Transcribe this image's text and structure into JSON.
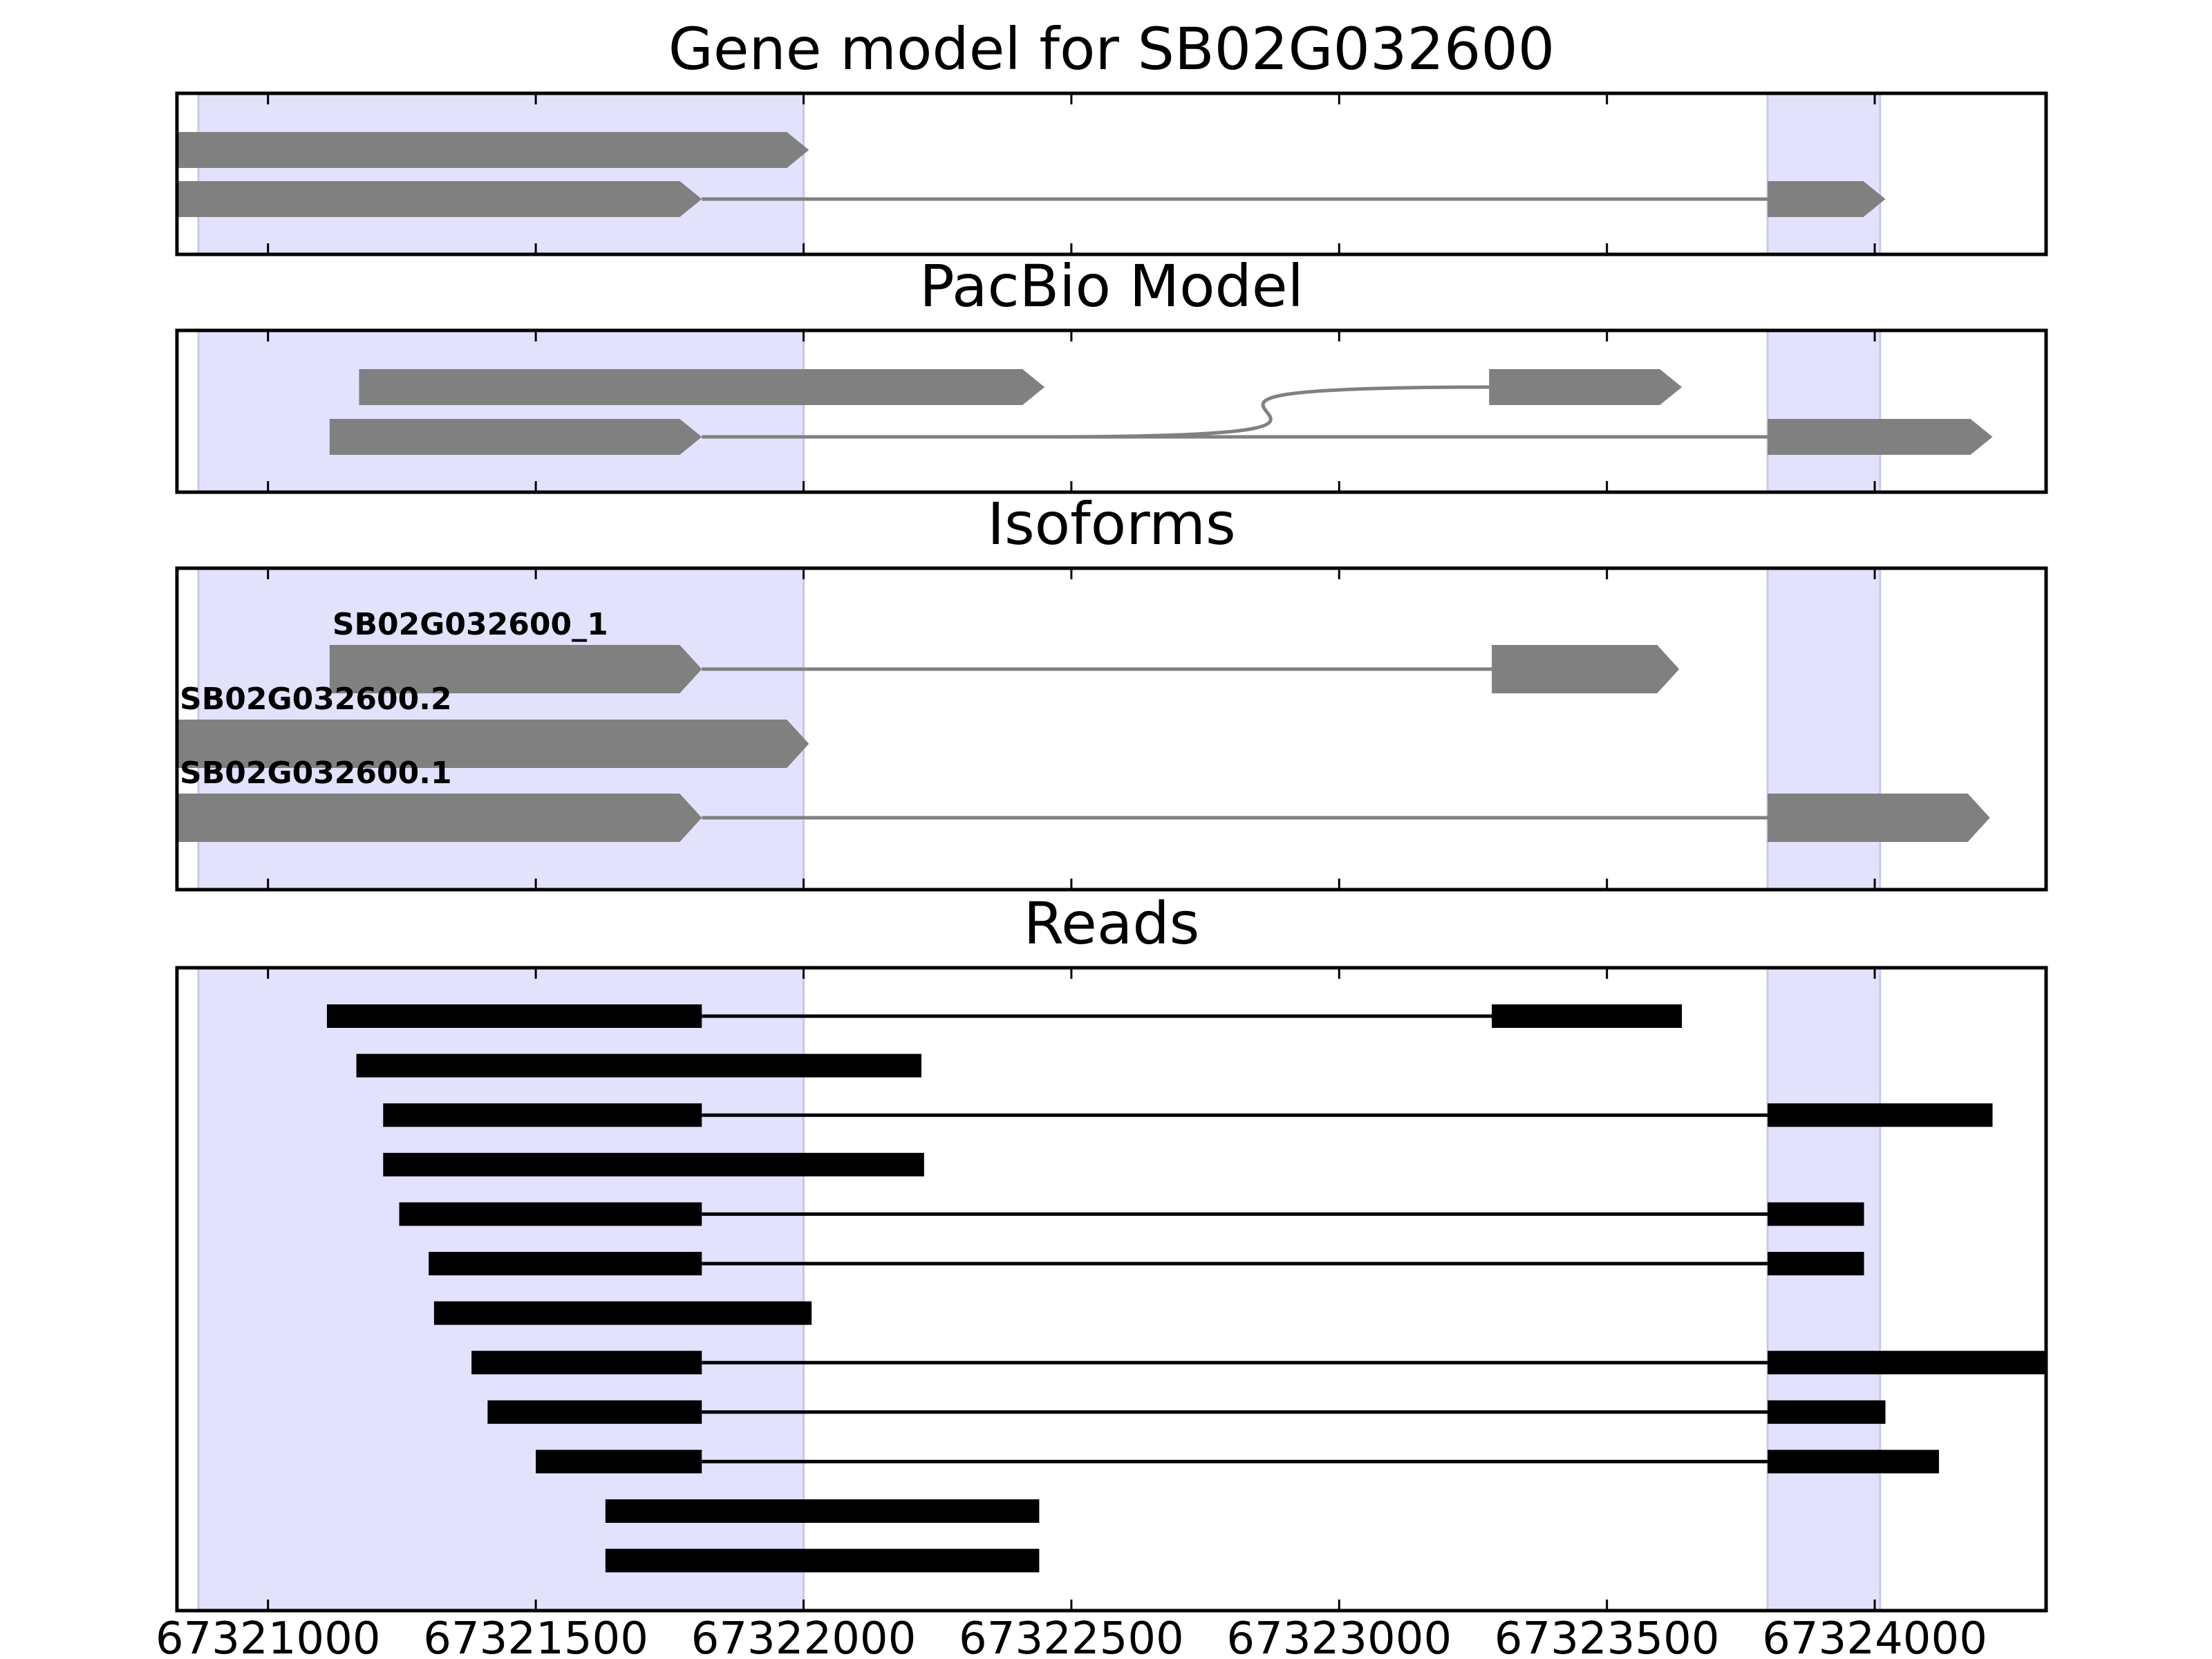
{
  "chart_data": {
    "type": "gene-track",
    "x_domain": [
      67320830,
      67324320
    ],
    "x_ticks": [
      67321000,
      67321500,
      67322000,
      67322500,
      67323000,
      67323500,
      67324000
    ],
    "x_tick_labels": [
      "67321000",
      "67321500",
      "67322000",
      "67322500",
      "67323000",
      "67323500",
      "67324000"
    ],
    "highlight_regions": [
      [
        67320870,
        67322000
      ],
      [
        67323800,
        67324010
      ]
    ],
    "colors": {
      "highlight": "#e2e2fd",
      "highlight_edge": "#c8c8ea",
      "model": "#808080",
      "read": "#000000",
      "frame": "#000000"
    },
    "panels": [
      {
        "title": "Gene model for SB02G032600",
        "rows": [
          {
            "exons": [
              [
                67320830,
                67322010
              ]
            ],
            "strand": "+"
          },
          {
            "exons": [
              [
                67320830,
                67321810
              ],
              [
                67323800,
                67324020
              ]
            ],
            "strand": "+"
          }
        ]
      },
      {
        "title": "PacBio Model",
        "rows": [
          {
            "exons": [
              [
                67321170,
                67322450
              ],
              [
                67323280,
                67323640
              ]
            ],
            "strand": "+",
            "junction": "curve"
          },
          {
            "exons": [
              [
                67321115,
                67321810
              ],
              [
                67323800,
                67324220
              ]
            ],
            "strand": "+",
            "junction": "straight"
          }
        ]
      },
      {
        "title": "Isoforms",
        "rows": [
          {
            "label": "SB02G032600_1",
            "exons": [
              [
                67321115,
                67321810
              ],
              [
                67323285,
                67323635
              ]
            ],
            "strand": "+"
          },
          {
            "label": "SB02G032600.2",
            "exons": [
              [
                67320830,
                67322010
              ]
            ],
            "strand": "+"
          },
          {
            "label": "SB02G032600.1",
            "exons": [
              [
                67320830,
                67321810
              ],
              [
                67323800,
                67324215
              ]
            ],
            "strand": "+"
          }
        ]
      },
      {
        "title": "Reads",
        "rows": [
          {
            "exons": [
              [
                67321110,
                67321810
              ],
              [
                67323285,
                67323640
              ]
            ]
          },
          {
            "exons": [
              [
                67321165,
                67322220
              ]
            ]
          },
          {
            "exons": [
              [
                67321215,
                67321810
              ],
              [
                67323800,
                67324220
              ]
            ]
          },
          {
            "exons": [
              [
                67321215,
                67322225
              ]
            ]
          },
          {
            "exons": [
              [
                67321245,
                67321810
              ],
              [
                67323800,
                67323980
              ]
            ]
          },
          {
            "exons": [
              [
                67321300,
                67321810
              ],
              [
                67323800,
                67323980
              ]
            ]
          },
          {
            "exons": [
              [
                67321310,
                67322015
              ]
            ]
          },
          {
            "exons": [
              [
                67321380,
                67321810
              ],
              [
                67323800,
                67324320
              ]
            ]
          },
          {
            "exons": [
              [
                67321410,
                67321810
              ],
              [
                67323800,
                67324020
              ]
            ]
          },
          {
            "exons": [
              [
                67321500,
                67321810
              ],
              [
                67323800,
                67324120
              ]
            ]
          },
          {
            "exons": [
              [
                67321630,
                67322440
              ]
            ]
          },
          {
            "exons": [
              [
                67321630,
                67322440
              ]
            ]
          }
        ]
      }
    ]
  }
}
